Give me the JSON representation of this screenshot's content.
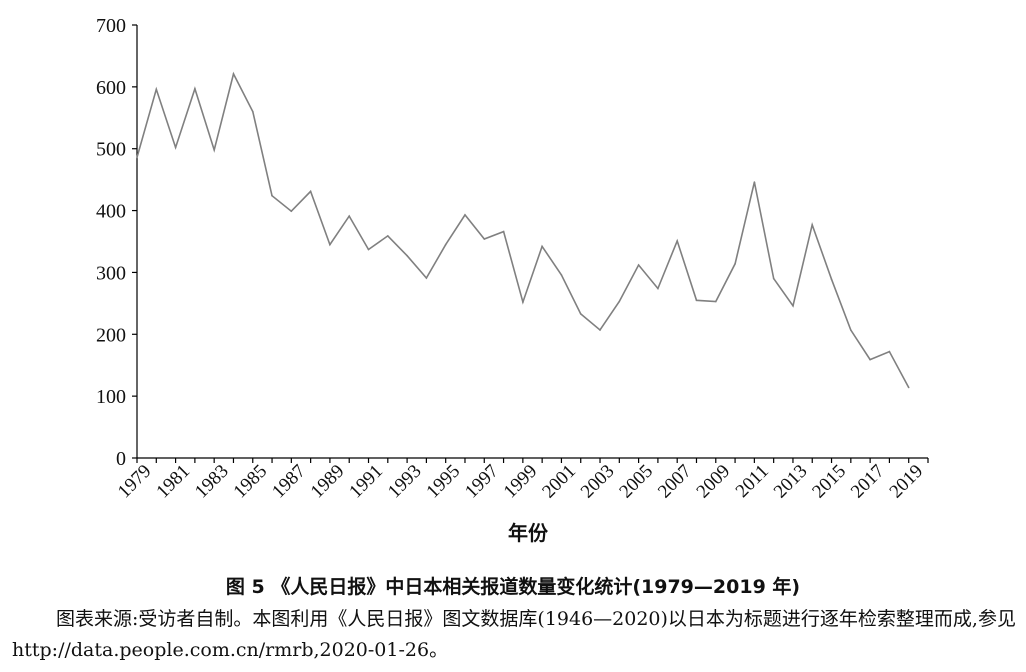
{
  "chart_data": {
    "type": "line",
    "title": "",
    "xlabel": "年份",
    "ylabel": "",
    "ylim": [
      0,
      700
    ],
    "yticks": [
      0,
      100,
      200,
      300,
      400,
      500,
      600,
      700
    ],
    "xlim": [
      1979,
      2019
    ],
    "xtick_labels": [
      "1979",
      "1981",
      "1983",
      "1985",
      "1987",
      "1989",
      "1991",
      "1993",
      "1995",
      "1997",
      "1999",
      "2001",
      "2003",
      "2005",
      "2007",
      "2009",
      "2011",
      "2013",
      "2015",
      "2017",
      "2019"
    ],
    "grid": false,
    "legend": "none",
    "line_color": "#808080",
    "x": [
      1979,
      1980,
      1981,
      1982,
      1983,
      1984,
      1985,
      1986,
      1987,
      1988,
      1989,
      1990,
      1991,
      1992,
      1993,
      1994,
      1995,
      1996,
      1997,
      1998,
      1999,
      2000,
      2001,
      2002,
      2003,
      2004,
      2005,
      2006,
      2007,
      2008,
      2009,
      2010,
      2011,
      2012,
      2013,
      2014,
      2015,
      2016,
      2017,
      2018,
      2019
    ],
    "series": [
      {
        "values": [
          486,
          596,
          502,
          597,
          498,
          621,
          560,
          424,
          399,
          431,
          345,
          391,
          337,
          359,
          327,
          291,
          345,
          393,
          354,
          366,
          252,
          342,
          296,
          233,
          207,
          253,
          312,
          274,
          351,
          255,
          253,
          314,
          446,
          290,
          246,
          377,
          289,
          207,
          159,
          172,
          114
        ]
      }
    ]
  },
  "caption": "图 5  《人民日报》中日本相关报道数量变化统计(1979—2019 年)",
  "source_note": "图表来源:受访者自制。本图利用《人民日报》图文数据库(1946—2020)以日本为标题进行逐年检索整理而成,参见 http://data.people.com.cn/rmrb,2020-01-26。"
}
